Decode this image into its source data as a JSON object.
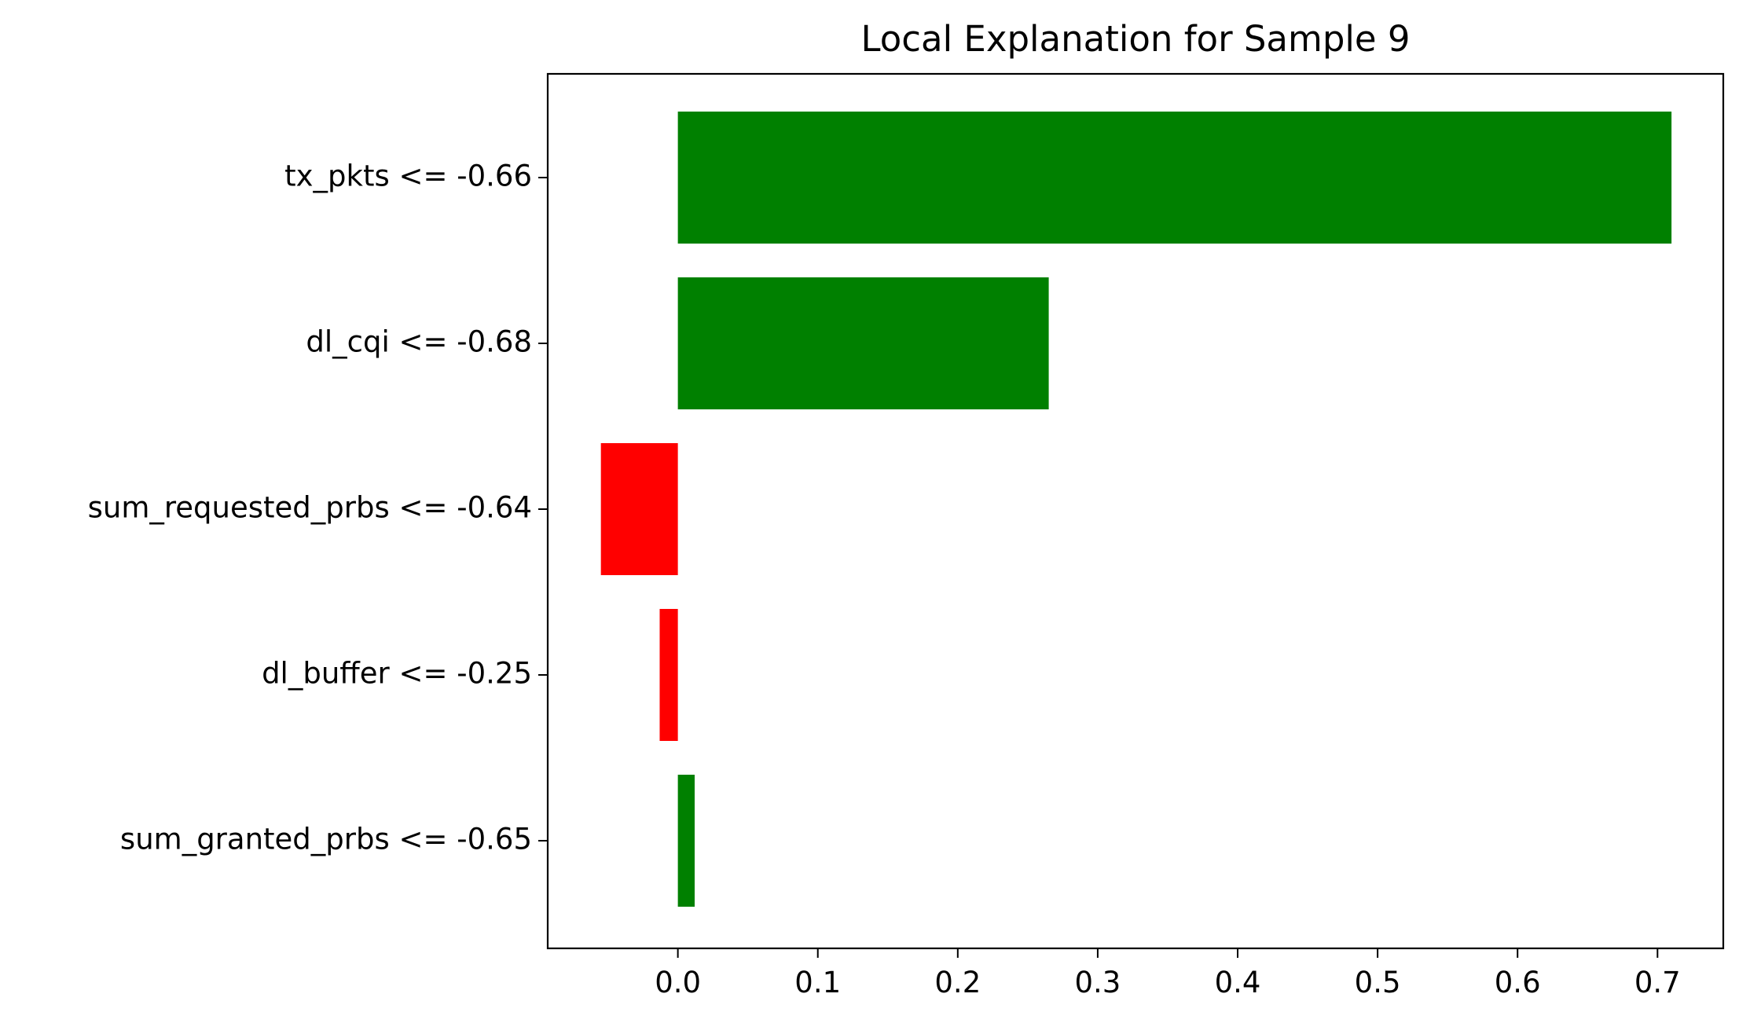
{
  "chart_data": {
    "type": "bar",
    "orientation": "horizontal",
    "title": "Local Explanation for Sample 9",
    "xlabel": "",
    "ylabel": "",
    "xlim": [
      -0.093,
      0.747
    ],
    "grid": false,
    "legend": "none",
    "categories": [
      "tx_pkts <= -0.66",
      "dl_cqi <= -0.68",
      "sum_requested_prbs <= -0.64",
      "dl_buffer <= -0.25",
      "sum_granted_prbs <= -0.65"
    ],
    "values": [
      0.71,
      0.265,
      -0.055,
      -0.013,
      0.012
    ],
    "x_ticks": [
      {
        "value": 0.0,
        "label": "0.0"
      },
      {
        "value": 0.1,
        "label": "0.1"
      },
      {
        "value": 0.2,
        "label": "0.2"
      },
      {
        "value": 0.3,
        "label": "0.3"
      },
      {
        "value": 0.4,
        "label": "0.4"
      },
      {
        "value": 0.5,
        "label": "0.5"
      },
      {
        "value": 0.6,
        "label": "0.6"
      },
      {
        "value": 0.7,
        "label": "0.7"
      }
    ],
    "colors": {
      "positive": "#008000",
      "negative": "#ff0000"
    }
  }
}
